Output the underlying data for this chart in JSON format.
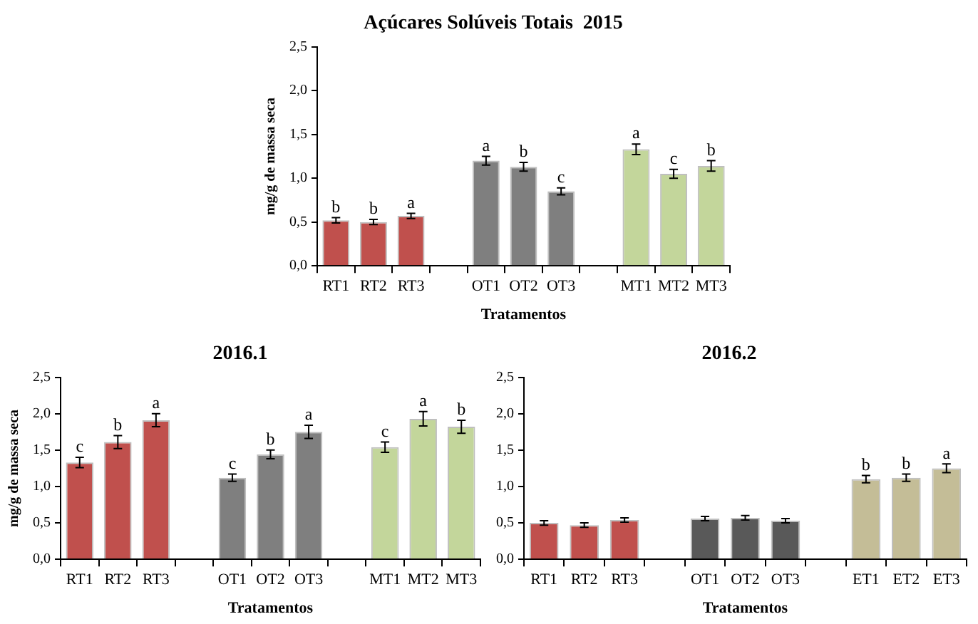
{
  "chart_data": [
    {
      "type": "bar",
      "title": "Açúcares Solúveis Totais  2015",
      "xlabel": "Tratamentos",
      "ylabel": "mg/g de massa seca",
      "categories": [
        "RT1",
        "RT2",
        "RT3",
        null,
        "OT1",
        "OT2",
        "OT3",
        null,
        "MT1",
        "MT2",
        "MT3"
      ],
      "values": [
        0.52,
        0.5,
        0.57,
        null,
        1.2,
        1.13,
        0.85,
        null,
        1.33,
        1.05,
        1.14
      ],
      "errors": [
        0.03,
        0.03,
        0.03,
        null,
        0.05,
        0.05,
        0.04,
        null,
        0.06,
        0.05,
        0.06
      ],
      "colors": [
        "#c0504d",
        "#c0504d",
        "#c0504d",
        "#ffffff",
        "#7f7f7f",
        "#7f7f7f",
        "#7f7f7f",
        "#ffffff",
        "#c3d69b",
        "#c3d69b",
        "#c3d69b"
      ],
      "ylim": [
        0,
        2.5
      ],
      "yticks": [
        {
          "value": 0,
          "label": "0,0"
        },
        {
          "value": 0.5,
          "label": "0,5"
        },
        {
          "value": 1,
          "label": "1,0"
        },
        {
          "value": 1.5,
          "label": "1,5"
        },
        {
          "value": 2,
          "label": "2,0"
        },
        {
          "value": 2.5,
          "label": "2,5"
        }
      ],
      "grid": false,
      "legend": false,
      "annotations": [
        {
          "text": "b",
          "x": "RT1",
          "y": 0.52
        },
        {
          "text": "b",
          "x": "RT2",
          "y": 0.5
        },
        {
          "text": "a",
          "x": "RT3",
          "y": 0.57
        },
        {
          "text": "a",
          "x": "OT1",
          "y": 1.2
        },
        {
          "text": "b",
          "x": "OT2",
          "y": 1.13
        },
        {
          "text": "c",
          "x": "OT3",
          "y": 0.85
        },
        {
          "text": "a",
          "x": "MT1",
          "y": 1.33
        },
        {
          "text": "c",
          "x": "MT2",
          "y": 1.05
        },
        {
          "text": "b",
          "x": "MT3",
          "y": 1.14
        }
      ]
    },
    {
      "type": "bar",
      "title": "2016.1",
      "xlabel": "Tratamentos",
      "ylabel": "mg/g de massa seca",
      "categories": [
        "RT1",
        "RT2",
        "RT3",
        null,
        "OT1",
        "OT2",
        "OT3",
        null,
        "MT1",
        "MT2",
        "MT3"
      ],
      "values": [
        1.33,
        1.61,
        1.91,
        null,
        1.12,
        1.44,
        1.75,
        null,
        1.54,
        1.93,
        1.82
      ],
      "errors": [
        0.07,
        0.09,
        0.09,
        null,
        0.05,
        0.06,
        0.09,
        null,
        0.07,
        0.1,
        0.09
      ],
      "colors": [
        "#c0504d",
        "#c0504d",
        "#c0504d",
        "#ffffff",
        "#7f7f7f",
        "#7f7f7f",
        "#7f7f7f",
        "#ffffff",
        "#c3d69b",
        "#c3d69b",
        "#c3d69b"
      ],
      "ylim": [
        0,
        2.5
      ],
      "yticks": [
        {
          "value": 0,
          "label": "0,0"
        },
        {
          "value": 0.5,
          "label": "0,5"
        },
        {
          "value": 1,
          "label": "1,0"
        },
        {
          "value": 1.5,
          "label": "1,5"
        },
        {
          "value": 2,
          "label": "2,0"
        },
        {
          "value": 2.5,
          "label": "2,5"
        }
      ],
      "grid": false,
      "legend": false,
      "annotations": [
        {
          "text": "c",
          "x": "RT1",
          "y": 1.33
        },
        {
          "text": "b",
          "x": "RT2",
          "y": 1.61
        },
        {
          "text": "a",
          "x": "RT3",
          "y": 1.91
        },
        {
          "text": "c",
          "x": "OT1",
          "y": 1.12
        },
        {
          "text": "b",
          "x": "OT2",
          "y": 1.44
        },
        {
          "text": "a",
          "x": "OT3",
          "y": 1.75
        },
        {
          "text": "c",
          "x": "MT1",
          "y": 1.54
        },
        {
          "text": "a",
          "x": "MT2",
          "y": 1.93
        },
        {
          "text": "b",
          "x": "MT3",
          "y": 1.82
        }
      ]
    },
    {
      "type": "bar",
      "title": "2016.2",
      "xlabel": "Tratamentos",
      "categories": [
        "RT1",
        "RT2",
        "RT3",
        null,
        "OT1",
        "OT2",
        "OT3",
        null,
        "ET1",
        "ET2",
        "ET3"
      ],
      "values": [
        0.5,
        0.47,
        0.54,
        null,
        0.56,
        0.57,
        0.53,
        null,
        1.1,
        1.12,
        1.25
      ],
      "errors": [
        0.03,
        0.03,
        0.03,
        null,
        0.03,
        0.03,
        0.03,
        null,
        0.05,
        0.05,
        0.06
      ],
      "colors": [
        "#c0504d",
        "#c0504d",
        "#c0504d",
        "#ffffff",
        "#595959",
        "#595959",
        "#595959",
        "#ffffff",
        "#c4bd97",
        "#c4bd97",
        "#c4bd97"
      ],
      "ylim": [
        0,
        2.5
      ],
      "yticks": [
        {
          "value": 0,
          "label": "0,0"
        },
        {
          "value": 0.5,
          "label": "0,5"
        },
        {
          "value": 1,
          "label": "1,0"
        },
        {
          "value": 1.5,
          "label": "1,5"
        },
        {
          "value": 2,
          "label": "2,0"
        },
        {
          "value": 2.5,
          "label": "2,5"
        }
      ],
      "grid": false,
      "legend": false,
      "annotations": [
        {
          "text": "b",
          "x": "ET1",
          "y": 1.1
        },
        {
          "text": "b",
          "x": "ET2",
          "y": 1.12
        },
        {
          "text": "a",
          "x": "ET3",
          "y": 1.25
        }
      ]
    }
  ]
}
